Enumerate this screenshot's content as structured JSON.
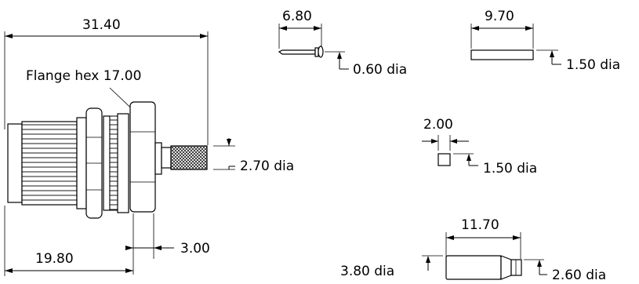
{
  "main_connector": {
    "overall_length": "31.40",
    "flange_label": "Flange hex 17.00",
    "pin_diameter": "2.70 dia",
    "flange_thickness": "3.00",
    "body_length": "19.80"
  },
  "pin_part": {
    "length": "6.80",
    "diameter": "0.60 dia"
  },
  "sleeve_part": {
    "length": "9.70",
    "diameter": "1.50 dia"
  },
  "small_part": {
    "length": "2.00",
    "diameter": "1.50 dia"
  },
  "ferrule_part": {
    "length": "11.70",
    "large_diameter": "3.80 dia",
    "small_diameter": "2.60 dia"
  }
}
